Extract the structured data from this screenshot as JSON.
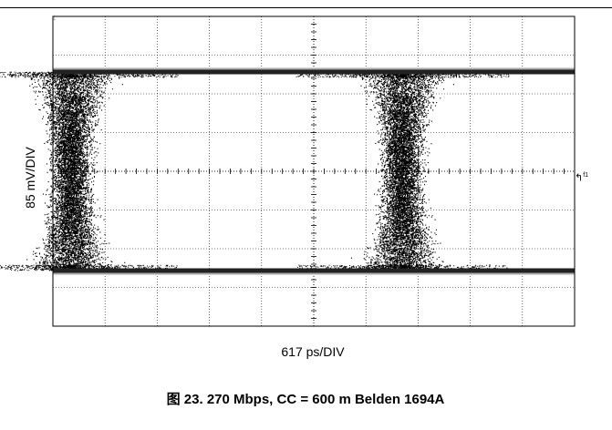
{
  "chart_data": {
    "type": "scatter",
    "title": "",
    "xlabel": "617 ps/DIV",
    "ylabel": "85 mV/DIV",
    "x_unit": "ps",
    "y_unit": "mV",
    "x_per_div_ps": 617,
    "y_per_div_mv": 85,
    "divisions": {
      "x": 10,
      "y": 8
    },
    "grid": true,
    "xlim_ps": [
      -3085,
      3085
    ],
    "ylim_mv": [
      -340,
      340
    ],
    "eye": {
      "high_level_mv": 217,
      "low_level_mv": -217,
      "crossing_center_ps": [
        -2868,
        1049
      ],
      "crossing_width_ps": 900
    },
    "trigger_marker": "f1"
  },
  "figure": {
    "caption": "图 23. 270 Mbps, CC = 600 m Belden 1694A"
  },
  "colors": {
    "trace": "#000000",
    "grid": "#000000",
    "background": "#ffffff"
  }
}
